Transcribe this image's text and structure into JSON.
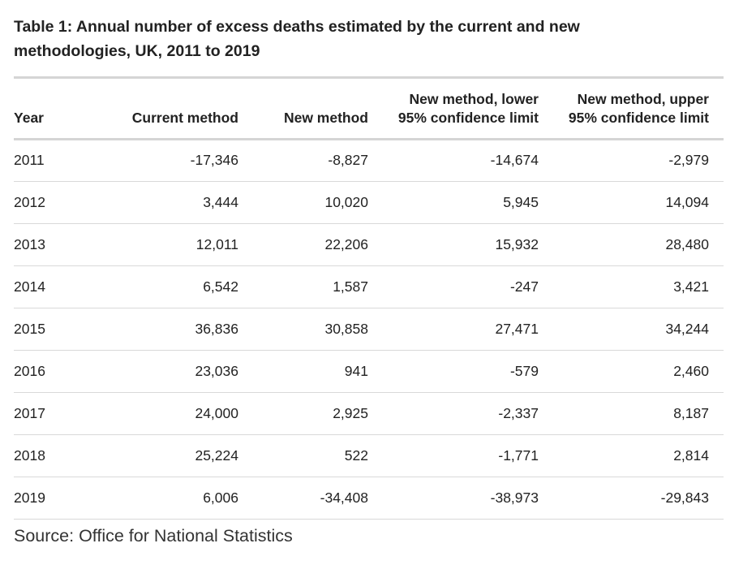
{
  "title": "Table 1: Annual number of excess deaths estimated by the current and new methodologies, UK, 2011 to 2019",
  "table": {
    "headers": [
      "Year",
      "Current method",
      "New method",
      "New method, lower 95% confidence limit",
      "New method, upper 95% confidence limit"
    ],
    "header_lines": {
      "lower": [
        "New method, lower",
        "95% confidence limit"
      ],
      "upper": [
        "New method, upper",
        "95% confidence limit"
      ]
    },
    "rows": [
      [
        "2011",
        "-17,346",
        "-8,827",
        "-14,674",
        "-2,979"
      ],
      [
        "2012",
        "3,444",
        "10,020",
        "5,945",
        "14,094"
      ],
      [
        "2013",
        "12,011",
        "22,206",
        "15,932",
        "28,480"
      ],
      [
        "2014",
        "6,542",
        "1,587",
        "-247",
        "3,421"
      ],
      [
        "2015",
        "36,836",
        "30,858",
        "27,471",
        "34,244"
      ],
      [
        "2016",
        "23,036",
        "941",
        "-579",
        "2,460"
      ],
      [
        "2017",
        "24,000",
        "2,925",
        "-2,337",
        "8,187"
      ],
      [
        "2018",
        "25,224",
        "522",
        "-1,771",
        "2,814"
      ],
      [
        "2019",
        "6,006",
        "-34,408",
        "-38,973",
        "-29,843"
      ]
    ]
  },
  "source": "Source: Office for National Statistics",
  "colors": {
    "text": "#222222",
    "rule": "#d5d5d5",
    "row_divider": "#d9d9d9"
  }
}
